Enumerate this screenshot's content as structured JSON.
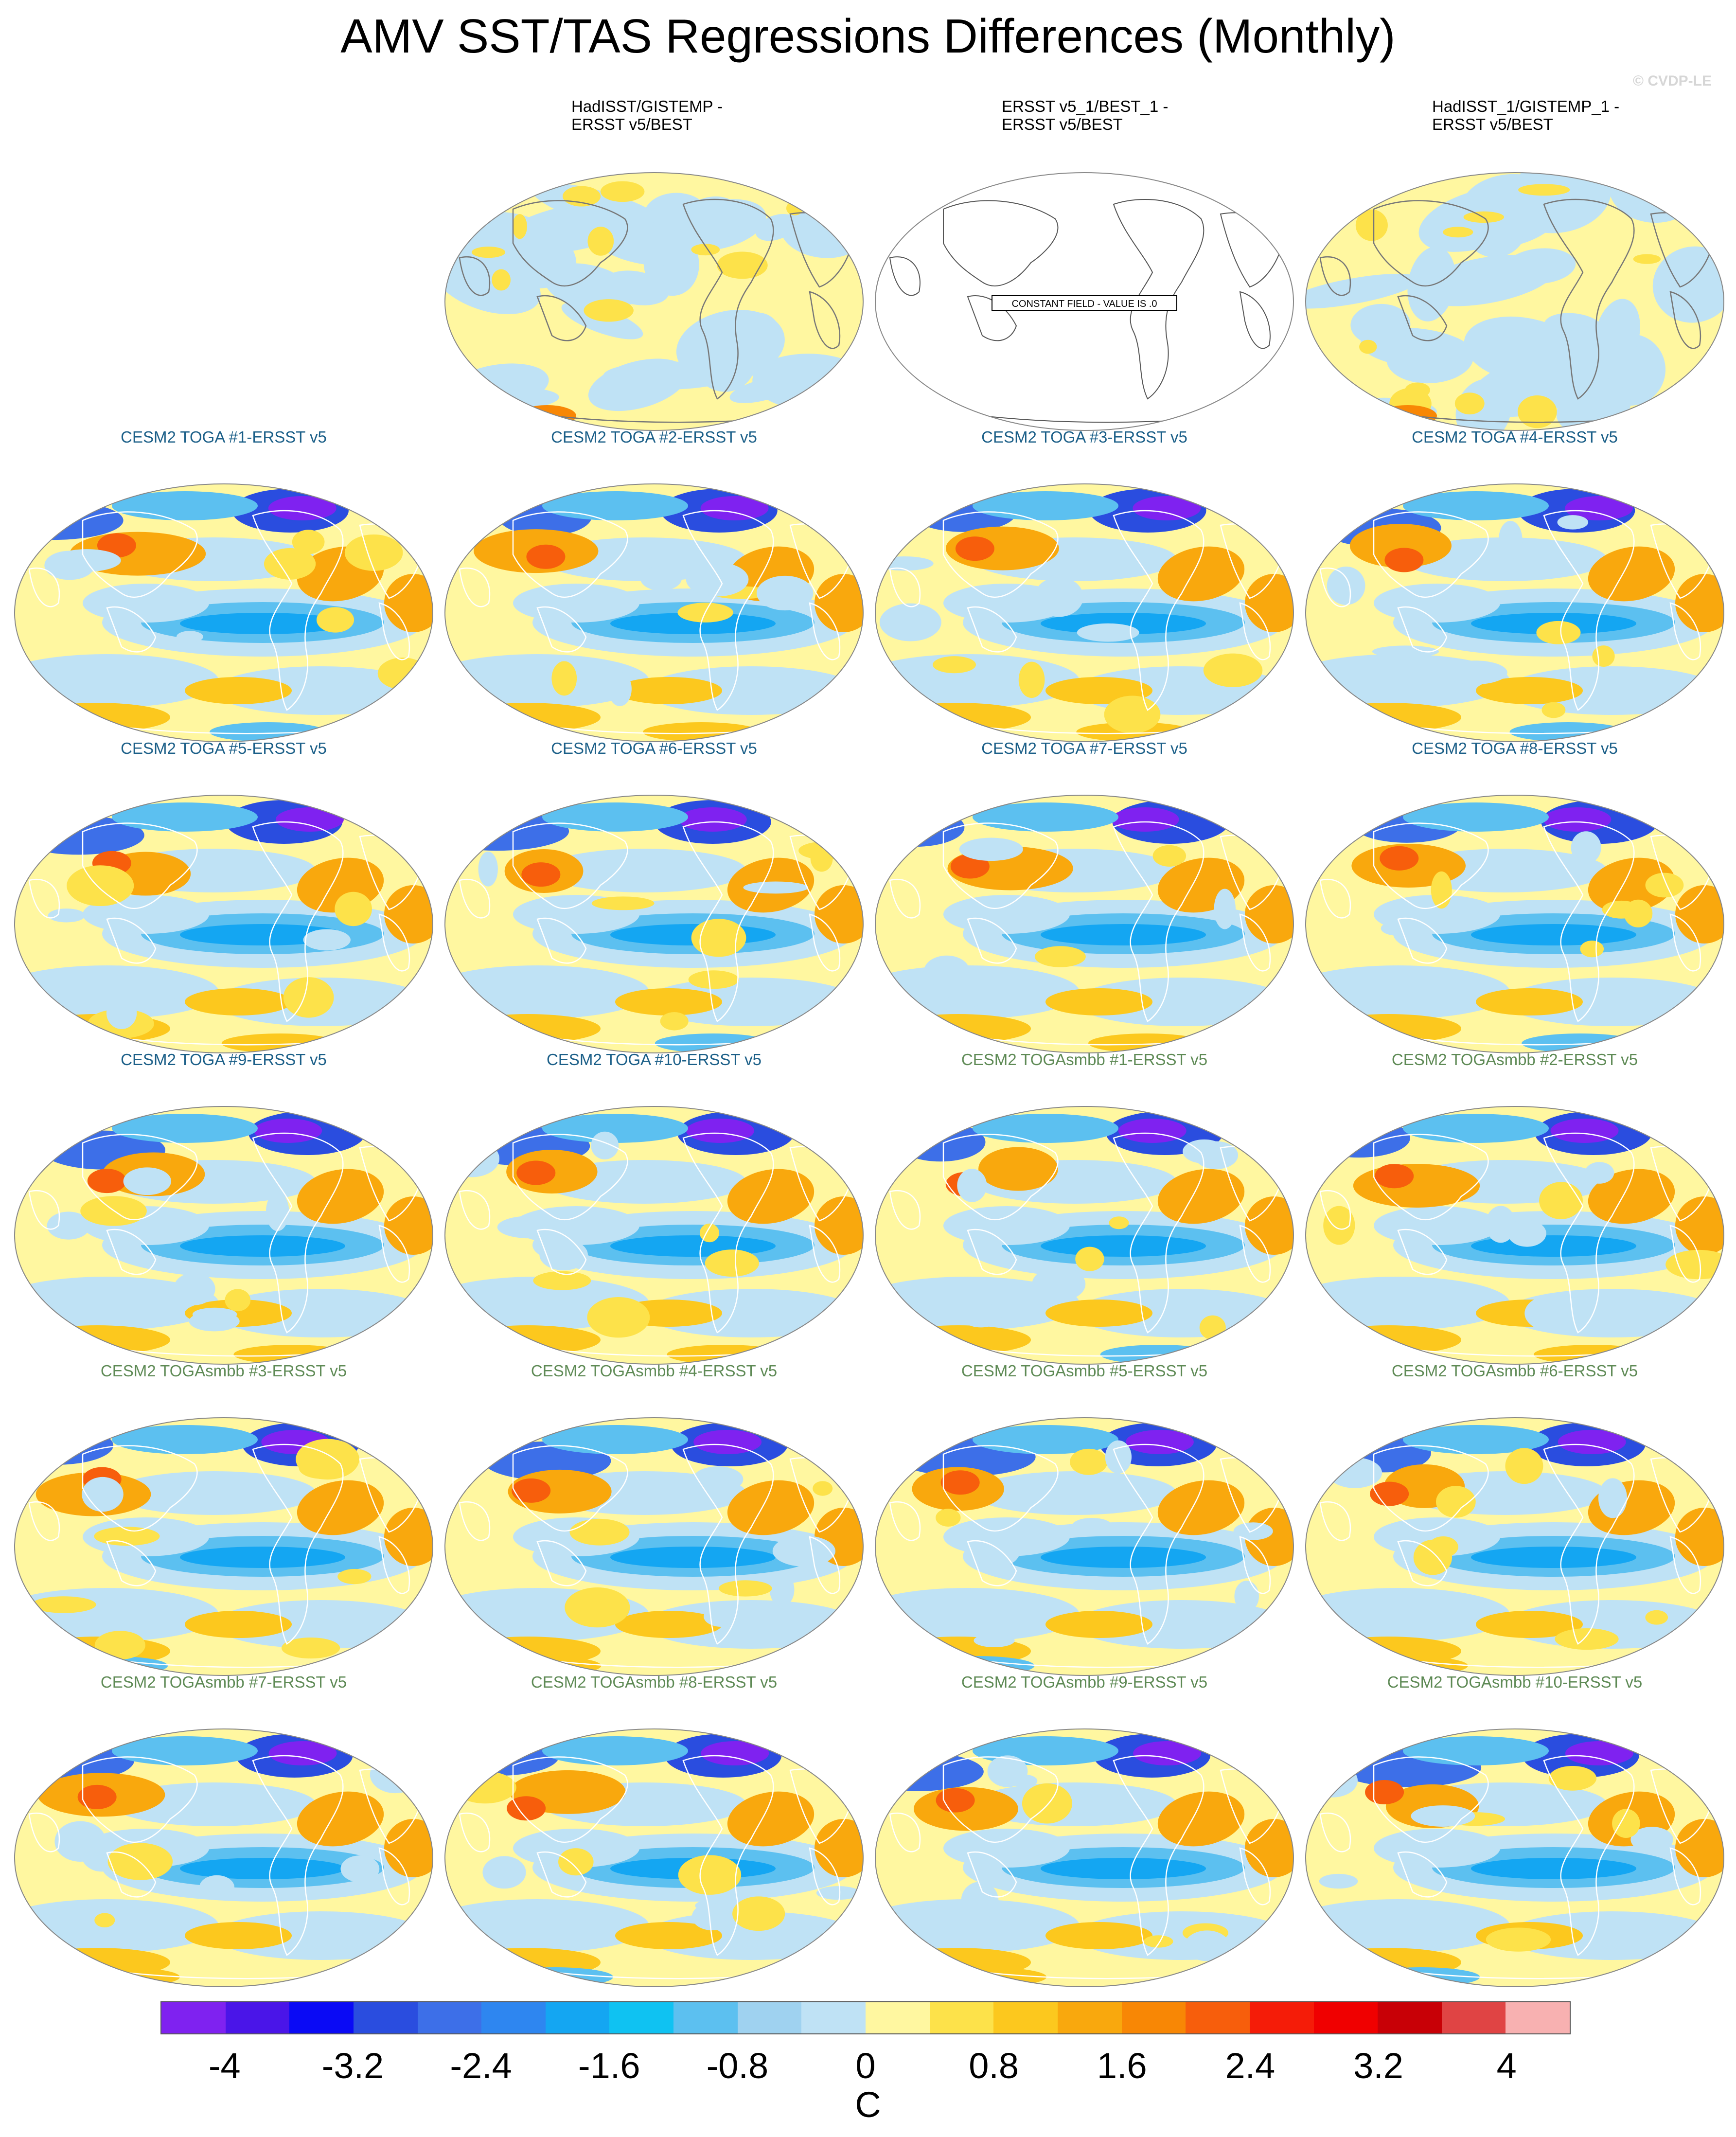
{
  "title": "AMV SST/TAS Regressions Differences (Monthly)",
  "watermark": "© CVDP-LE",
  "constant_field_label": "CONSTANT FIELD - VALUE IS .0",
  "panels": [
    {
      "title": "HadISST/GISTEMP -\nERSST v5/BEST",
      "kind": "obs",
      "pattern": "weak"
    },
    {
      "title": "ERSST v5_1/BEST_1 -\nERSST v5/BEST",
      "kind": "obs",
      "pattern": "constant"
    },
    {
      "title": "HadISST_1/GISTEMP_1 -\nERSST v5/BEST",
      "kind": "obs",
      "pattern": "weak"
    },
    {
      "title": "CESM2 TOGA #1-ERSST v5",
      "kind": "toga",
      "pattern": "model"
    },
    {
      "title": "CESM2 TOGA #2-ERSST v5",
      "kind": "toga",
      "pattern": "model"
    },
    {
      "title": "CESM2 TOGA #3-ERSST v5",
      "kind": "toga",
      "pattern": "model"
    },
    {
      "title": "CESM2 TOGA #4-ERSST v5",
      "kind": "toga",
      "pattern": "model"
    },
    {
      "title": "CESM2 TOGA #5-ERSST v5",
      "kind": "toga",
      "pattern": "model"
    },
    {
      "title": "CESM2 TOGA #6-ERSST v5",
      "kind": "toga",
      "pattern": "model"
    },
    {
      "title": "CESM2 TOGA #7-ERSST v5",
      "kind": "toga",
      "pattern": "model"
    },
    {
      "title": "CESM2 TOGA #8-ERSST v5",
      "kind": "toga",
      "pattern": "model"
    },
    {
      "title": "CESM2 TOGA #9-ERSST v5",
      "kind": "toga",
      "pattern": "model"
    },
    {
      "title": "CESM2 TOGA #10-ERSST v5",
      "kind": "toga",
      "pattern": "model"
    },
    {
      "title": "CESM2 TOGAsmbb #1-ERSST v5",
      "kind": "smbb",
      "pattern": "model"
    },
    {
      "title": "CESM2 TOGAsmbb #2-ERSST v5",
      "kind": "smbb",
      "pattern": "model"
    },
    {
      "title": "CESM2 TOGAsmbb #3-ERSST v5",
      "kind": "smbb",
      "pattern": "model"
    },
    {
      "title": "CESM2 TOGAsmbb #4-ERSST v5",
      "kind": "smbb",
      "pattern": "model"
    },
    {
      "title": "CESM2 TOGAsmbb #5-ERSST v5",
      "kind": "smbb",
      "pattern": "model"
    },
    {
      "title": "CESM2 TOGAsmbb #6-ERSST v5",
      "kind": "smbb",
      "pattern": "model"
    },
    {
      "title": "CESM2 TOGAsmbb #7-ERSST v5",
      "kind": "smbb",
      "pattern": "model"
    },
    {
      "title": "CESM2 TOGAsmbb #8-ERSST v5",
      "kind": "smbb",
      "pattern": "model"
    },
    {
      "title": "CESM2 TOGAsmbb #9-ERSST v5",
      "kind": "smbb",
      "pattern": "model"
    },
    {
      "title": "CESM2 TOGAsmbb #10-ERSST v5",
      "kind": "smbb",
      "pattern": "model"
    }
  ],
  "colorbar": {
    "colors": [
      "#7f22f0",
      "#4a15e8",
      "#0a0af5",
      "#2a4ddf",
      "#3d6fe8",
      "#2e86f0",
      "#14a6f2",
      "#0fc2f2",
      "#5cc0f0",
      "#9fd2f0",
      "#bfe2f5",
      "#fff7a0",
      "#fde24a",
      "#fcc81e",
      "#f9a80d",
      "#f88705",
      "#f75e0c",
      "#f51c08",
      "#f00000",
      "#c80006",
      "#e04444",
      "#f8b1b1"
    ],
    "tick_labels": [
      "-4",
      "-3.2",
      "-2.4",
      "-1.6",
      "-0.8",
      "0",
      "0.8",
      "1.6",
      "2.4",
      "3.2",
      "4"
    ],
    "unit": "C"
  }
}
